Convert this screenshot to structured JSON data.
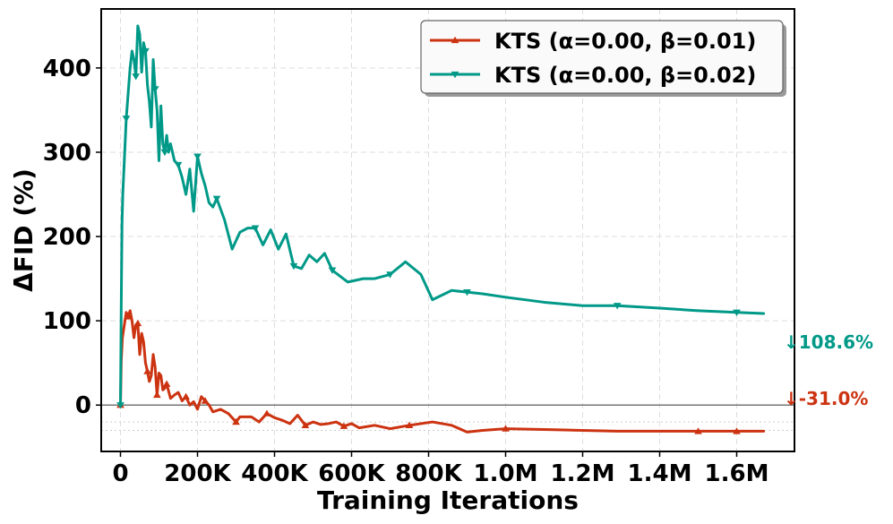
{
  "chart_data": {
    "type": "line",
    "xlabel": "Training Iterations",
    "ylabel": "ΔFID (%)",
    "xlim": [
      -50000,
      1750000
    ],
    "ylim": [
      -55,
      470
    ],
    "x_ticks": [
      {
        "value": 0,
        "label": "0"
      },
      {
        "value": 200000,
        "label": "200K"
      },
      {
        "value": 400000,
        "label": "400K"
      },
      {
        "value": 600000,
        "label": "600K"
      },
      {
        "value": 800000,
        "label": "800K"
      },
      {
        "value": 1000000,
        "label": "1.0M"
      },
      {
        "value": 1200000,
        "label": "1.2M"
      },
      {
        "value": 1400000,
        "label": "1.4M"
      },
      {
        "value": 1600000,
        "label": "1.6M"
      }
    ],
    "y_ticks": [
      {
        "value": 0,
        "label": "0"
      },
      {
        "value": 100,
        "label": "100"
      },
      {
        "value": 200,
        "label": "200"
      },
      {
        "value": 300,
        "label": "300"
      },
      {
        "value": 400,
        "label": "400"
      }
    ],
    "grid": true,
    "legend_position": "top-right",
    "reference_line_y": 0,
    "series": [
      {
        "name": "KTS (α=0.00, β=0.01)",
        "color": "#cc3311",
        "marker": "triangle-up",
        "final_label": "↓-31.0%",
        "x": [
          0,
          2000,
          5000,
          10000,
          15000,
          20000,
          25000,
          30000,
          35000,
          40000,
          45000,
          50000,
          55000,
          60000,
          65000,
          70000,
          75000,
          80000,
          85000,
          90000,
          95000,
          100000,
          105000,
          110000,
          115000,
          120000,
          130000,
          140000,
          150000,
          160000,
          170000,
          180000,
          190000,
          200000,
          210000,
          220000,
          230000,
          240000,
          260000,
          280000,
          300000,
          310000,
          320000,
          340000,
          360000,
          380000,
          400000,
          420000,
          440000,
          460000,
          480000,
          500000,
          520000,
          540000,
          560000,
          580000,
          600000,
          620000,
          660000,
          700000,
          750000,
          810000,
          860000,
          900000,
          940000,
          1000000,
          1100000,
          1200000,
          1290000,
          1400000,
          1500000,
          1600000,
          1670000
        ],
        "y": [
          0,
          52,
          80,
          95,
          110,
          105,
          112,
          100,
          80,
          95,
          97,
          60,
          85,
          75,
          50,
          40,
          28,
          35,
          60,
          45,
          12,
          38,
          35,
          18,
          20,
          25,
          8,
          12,
          15,
          5,
          10,
          0,
          4,
          -5,
          10,
          5,
          0,
          -8,
          -5,
          -10,
          -20,
          -14,
          -14,
          -14,
          -20,
          -10,
          -15,
          -18,
          -22,
          -12,
          -24,
          -20,
          -23,
          -22,
          -20,
          -25,
          -22,
          -27,
          -24,
          -28,
          -24,
          -20,
          -24,
          -32,
          -30,
          -28,
          -29,
          -30,
          -31,
          -31,
          -31,
          -31,
          -31
        ]
      },
      {
        "name": "KTS (α=0.00, β=0.02)",
        "color": "#009988",
        "marker": "triangle-down",
        "final_label": "↓108.6%",
        "x": [
          0,
          2000,
          4000,
          6000,
          10000,
          15000,
          20000,
          25000,
          30000,
          35000,
          40000,
          45000,
          50000,
          55000,
          60000,
          65000,
          70000,
          75000,
          80000,
          85000,
          90000,
          95000,
          100000,
          105000,
          110000,
          115000,
          120000,
          125000,
          130000,
          140000,
          150000,
          160000,
          170000,
          180000,
          190000,
          200000,
          210000,
          220000,
          230000,
          240000,
          250000,
          270000,
          290000,
          310000,
          330000,
          350000,
          370000,
          390000,
          410000,
          430000,
          450000,
          470000,
          490000,
          510000,
          530000,
          550000,
          570000,
          590000,
          630000,
          660000,
          700000,
          740000,
          780000,
          810000,
          860000,
          900000,
          940000,
          1000000,
          1100000,
          1200000,
          1290000,
          1400000,
          1500000,
          1600000,
          1670000
        ],
        "y": [
          0,
          120,
          215,
          250,
          290,
          340,
          370,
          400,
          420,
          410,
          390,
          450,
          440,
          395,
          430,
          420,
          380,
          360,
          330,
          410,
          375,
          350,
          290,
          355,
          310,
          300,
          320,
          300,
          310,
          290,
          285,
          270,
          250,
          280,
          230,
          295,
          275,
          260,
          240,
          235,
          245,
          220,
          185,
          205,
          210,
          210,
          190,
          208,
          185,
          203,
          165,
          162,
          178,
          170,
          180,
          160,
          153,
          146,
          150,
          150,
          155,
          170,
          155,
          125,
          136,
          134,
          132,
          128,
          122,
          118,
          118,
          115,
          112,
          110,
          108.6
        ]
      }
    ]
  }
}
